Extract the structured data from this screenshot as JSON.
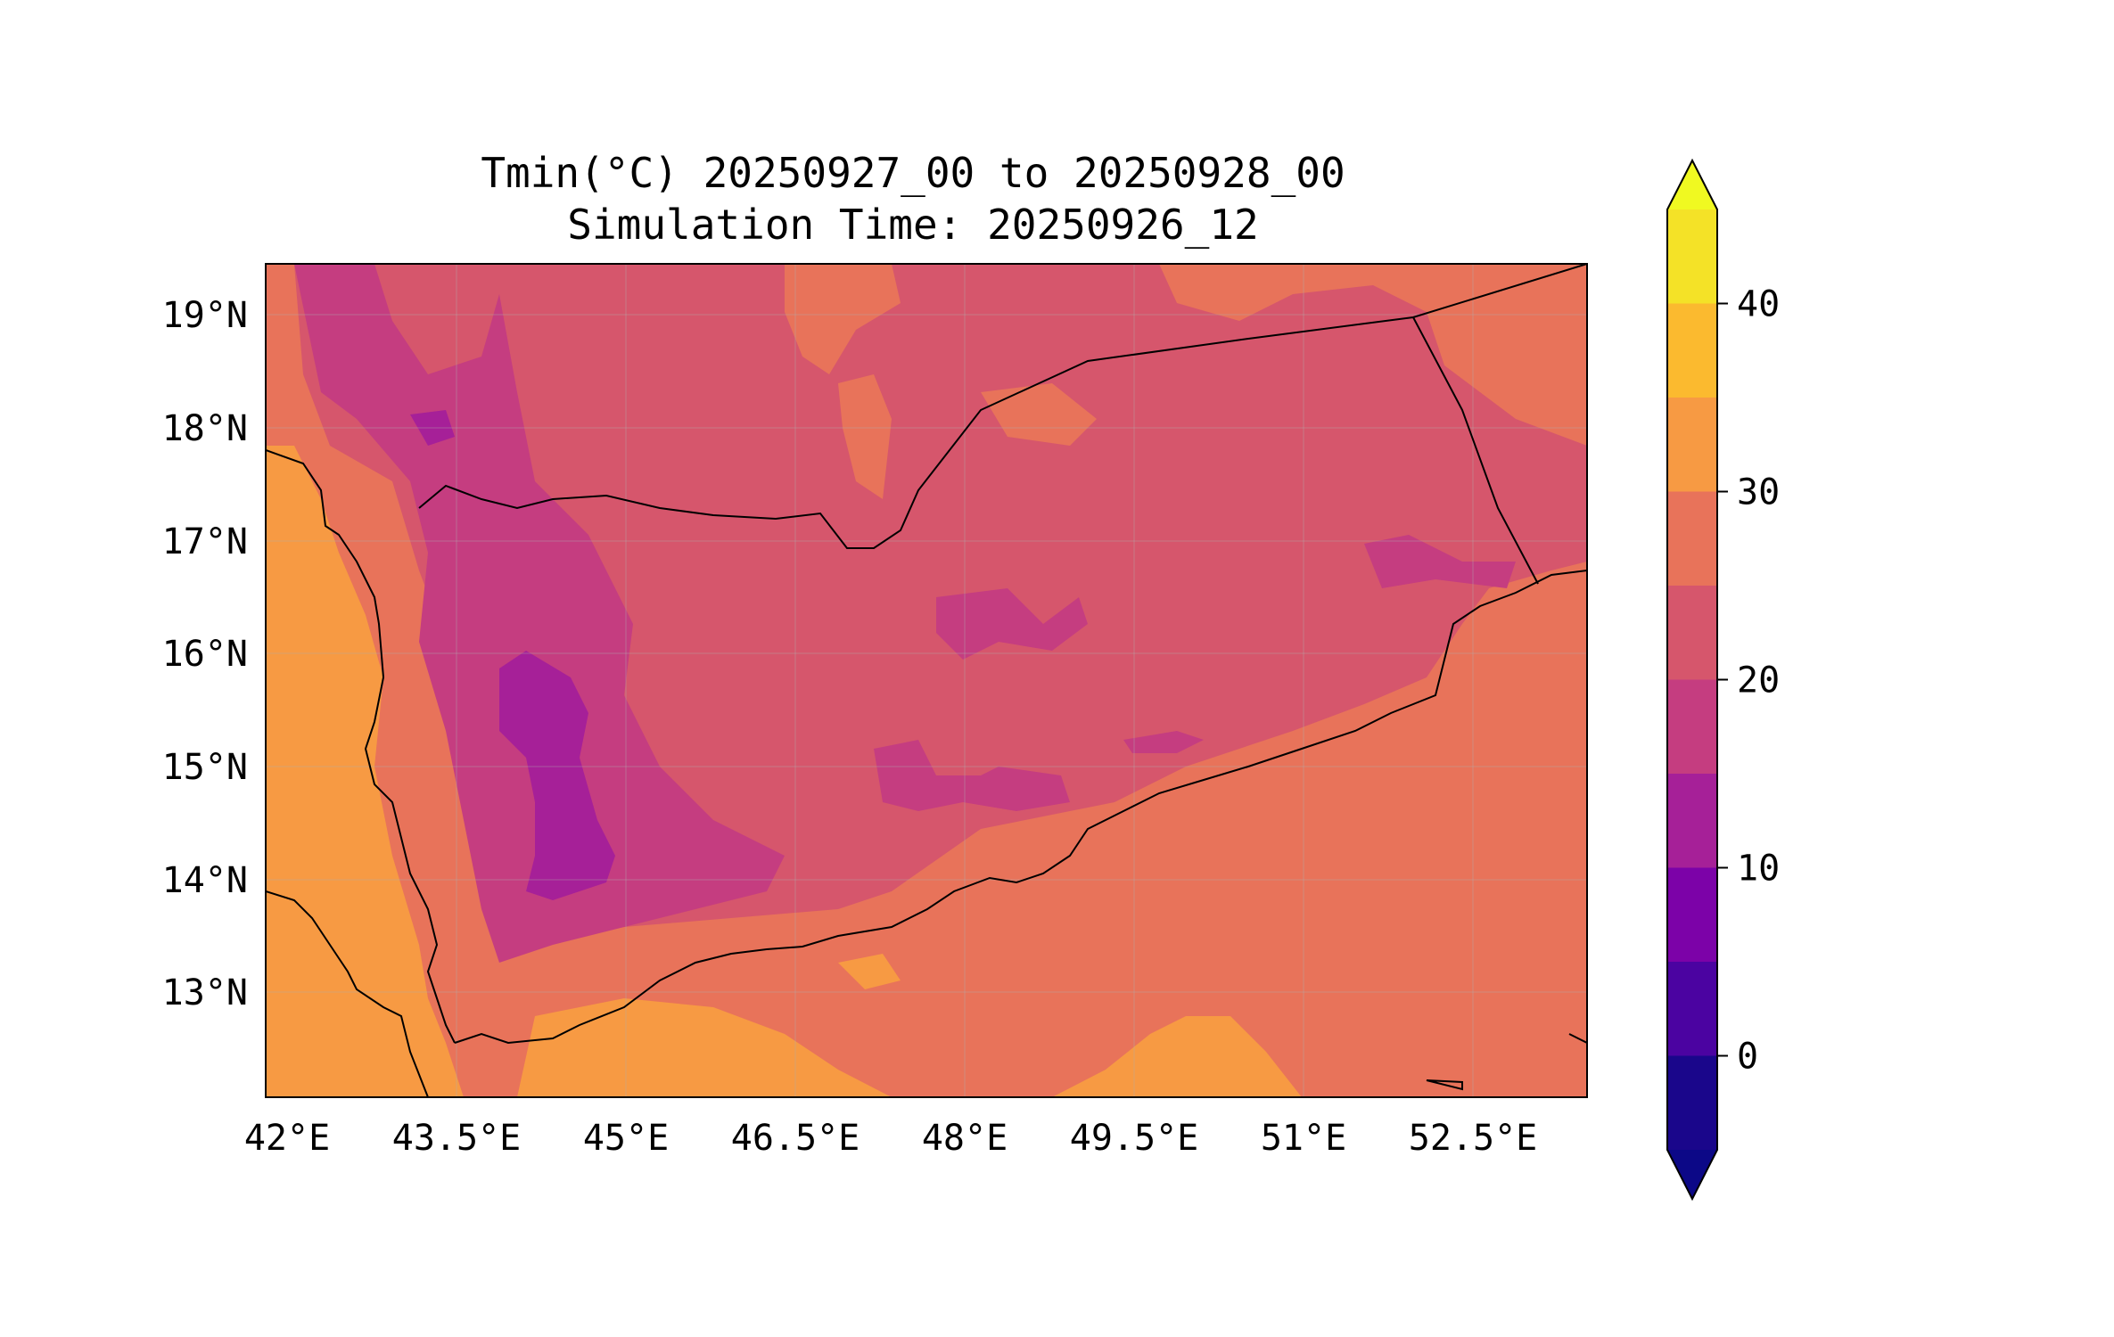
{
  "title": {
    "line1": "Tmin(°C) 20250927_00 to 20250928_00",
    "line2": "Simulation Time: 20250926_12"
  },
  "chart_data": {
    "type": "heatmap",
    "variable": "Tmin(°C)",
    "x_ticks": [
      "42°E",
      "43.5°E",
      "45°E",
      "46.5°E",
      "48°E",
      "49.5°E",
      "51°E",
      "52.5°E"
    ],
    "x_tick_values": [
      42,
      43.5,
      45,
      46.5,
      48,
      49.5,
      51,
      52.5
    ],
    "y_ticks": [
      "13°N",
      "14°N",
      "15°N",
      "16°N",
      "17°N",
      "18°N",
      "19°N"
    ],
    "y_tick_values": [
      13,
      14,
      15,
      16,
      17,
      18,
      19
    ],
    "xlim": [
      41.9,
      53.8
    ],
    "ylim": [
      12.1,
      19.5
    ],
    "colorbar": {
      "levels": [
        -5,
        0,
        5,
        10,
        15,
        20,
        25,
        30,
        35,
        40,
        45
      ],
      "colors": [
        "#1a068b",
        "#4b03a1",
        "#7c02a8",
        "#a62098",
        "#c53d80",
        "#d6566c",
        "#e8735a",
        "#f79a43",
        "#fbba2f",
        "#f4e227"
      ],
      "under_color": "#0c0887",
      "over_color": "#f0f921",
      "extend": "both",
      "tick_labels": [
        "0",
        "10",
        "20",
        "30",
        "40"
      ],
      "tick_values": [
        0,
        10,
        20,
        30,
        40
      ]
    },
    "grid": true
  }
}
